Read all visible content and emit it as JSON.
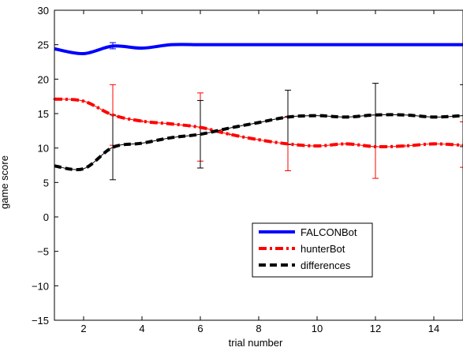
{
  "chart_data": {
    "type": "line",
    "xlabel": "trial number",
    "ylabel": "game score",
    "xlim": [
      1,
      15
    ],
    "ylim": [
      -15,
      30
    ],
    "xticks": [
      2,
      4,
      6,
      8,
      10,
      12,
      14
    ],
    "yticks": [
      -15,
      -10,
      -5,
      0,
      5,
      10,
      15,
      20,
      25,
      30
    ],
    "grid": false,
    "legend_position": "lower-right",
    "x": [
      1,
      2,
      3,
      4,
      5,
      6,
      7,
      8,
      9,
      10,
      11,
      12,
      13,
      14,
      15
    ],
    "series": [
      {
        "name": "FALCONBot",
        "color": "#0000ff",
        "style": "solid",
        "values": [
          24.4,
          23.7,
          24.8,
          24.5,
          25.0,
          25.0,
          25.0,
          25.0,
          25.0,
          25.0,
          25.0,
          25.0,
          25.0,
          25.0,
          25.0
        ],
        "error_bars": [
          {
            "x": 3,
            "low": 24.4,
            "high": 25.3
          }
        ]
      },
      {
        "name": "hunterBot",
        "color": "#ff0000",
        "style": "dashdot",
        "values": [
          17.1,
          16.8,
          14.8,
          13.9,
          13.5,
          13.0,
          12.0,
          11.2,
          10.6,
          10.3,
          10.6,
          10.2,
          10.3,
          10.6,
          10.4
        ],
        "error_bars": [
          {
            "x": 3,
            "low": 10.4,
            "high": 19.2
          },
          {
            "x": 6,
            "low": 8.1,
            "high": 18.0
          },
          {
            "x": 9,
            "low": 6.7,
            "high": 14.6
          },
          {
            "x": 12,
            "low": 5.6,
            "high": 14.8
          },
          {
            "x": 15,
            "low": 7.2,
            "high": 13.8
          }
        ]
      },
      {
        "name": "differences",
        "color": "#000000",
        "style": "dashed",
        "values": [
          7.4,
          7.0,
          10.1,
          10.7,
          11.5,
          12.0,
          12.9,
          13.7,
          14.5,
          14.7,
          14.5,
          14.8,
          14.8,
          14.5,
          14.7
        ],
        "error_bars": [
          {
            "x": 3,
            "low": 5.4,
            "high": 14.8
          },
          {
            "x": 6,
            "low": 7.1,
            "high": 16.9
          },
          {
            "x": 9,
            "low": 10.5,
            "high": 18.4
          },
          {
            "x": 12,
            "low": 10.2,
            "high": 19.4
          },
          {
            "x": 15,
            "low": 10.2,
            "high": 19.2
          }
        ]
      }
    ]
  }
}
